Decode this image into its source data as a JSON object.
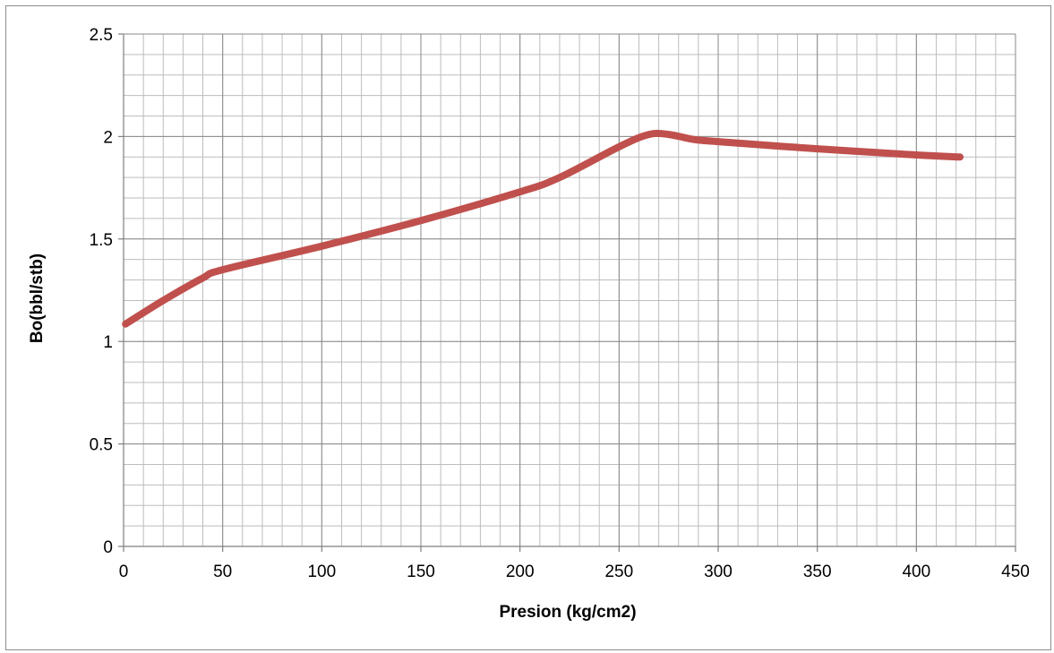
{
  "chart_data": {
    "type": "line",
    "title": "",
    "xlabel": "Presion (kg/cm2)",
    "ylabel": "Bo(bbl/stb)",
    "xlim": [
      0,
      450
    ],
    "ylim": [
      0,
      2.5
    ],
    "x_ticks": [
      0,
      50,
      100,
      150,
      200,
      250,
      300,
      350,
      400,
      450
    ],
    "y_ticks": [
      0,
      0.5,
      1,
      1.5,
      2,
      2.5
    ],
    "x_tick_labels": [
      "0",
      "50",
      "100",
      "150",
      "200",
      "250",
      "300",
      "350",
      "400",
      "450"
    ],
    "y_tick_labels": [
      "0",
      "0.5",
      "1",
      "1.5",
      "2",
      "2.5"
    ],
    "grid": true,
    "legend": "none",
    "series": [
      {
        "color": "#c0504d",
        "x": [
          1,
          20,
          40,
          50,
          100,
          150,
          200,
          220,
          250,
          265,
          275,
          288,
          300,
          350,
          400,
          422
        ],
        "y": [
          1.085,
          1.2,
          1.31,
          1.35,
          1.465,
          1.59,
          1.73,
          1.8,
          1.95,
          2.01,
          2.01,
          1.985,
          1.975,
          1.94,
          1.91,
          1.9
        ]
      }
    ]
  }
}
